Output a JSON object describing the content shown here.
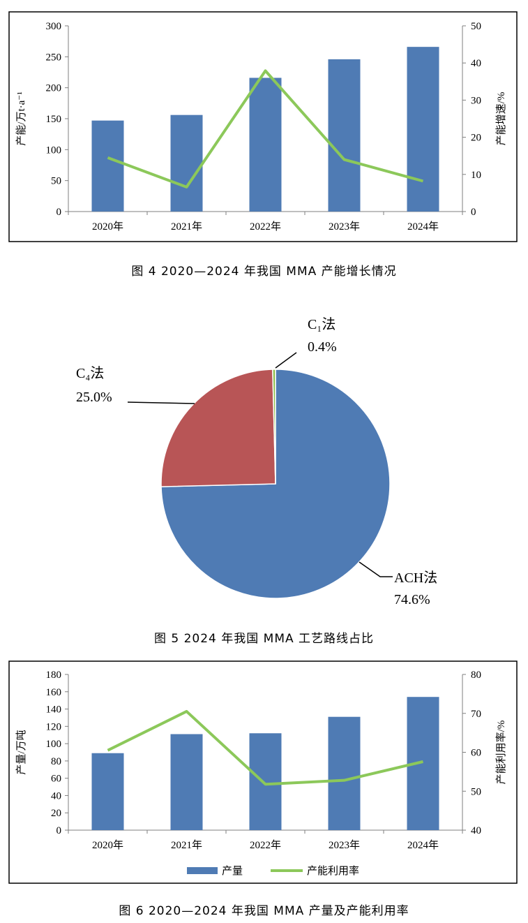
{
  "charts": [
    {
      "type": "bar",
      "caption": "图 4  2020—2024 年我国 MMA 产能增长情况",
      "categories": [
        "2020年",
        "2021年",
        "2022年",
        "2023年",
        "2024年"
      ],
      "series": [
        {
          "values": [
            147,
            156,
            216,
            246,
            266
          ],
          "axis": "left",
          "kind": "bar"
        },
        {
          "values": [
            14.5,
            6.6,
            37.9,
            14.0,
            8.2
          ],
          "axis": "right",
          "kind": "line"
        }
      ],
      "ylabel_left": "产能/万t·a⁻¹",
      "ylabel_right": "产能增速/%",
      "left_ticks": [
        "0",
        "50",
        "100",
        "150",
        "200",
        "250",
        "300"
      ],
      "right_ticks": [
        "0",
        "10",
        "20",
        "30",
        "40",
        "50"
      ],
      "ylim_left": [
        0,
        300
      ],
      "ylim_right": [
        0,
        50
      ],
      "grid": false,
      "colors": {
        "bar": "#4f7bb4",
        "line": "#8cc85a"
      }
    },
    {
      "type": "pie",
      "caption": "图 5  2024 年我国 MMA 工艺路线占比",
      "slices": [
        {
          "label": "ACH法",
          "value": 74.6,
          "display": "74.6%",
          "color": "#4f7bb4"
        },
        {
          "label": "C₄法",
          "value": 25.0,
          "display": "25.0%",
          "color": "#b85556"
        },
        {
          "label": "C₁法",
          "value": 0.4,
          "display": "0.4%",
          "color": "#8fbe4d"
        }
      ]
    },
    {
      "type": "bar",
      "caption": "图 6  2020—2024 年我国 MMA 产量及产能利用率",
      "categories": [
        "2020年",
        "2021年",
        "2022年",
        "2023年",
        "2024年"
      ],
      "series": [
        {
          "name": "产量",
          "values": [
            89,
            111,
            112,
            131,
            154
          ],
          "axis": "left",
          "kind": "bar"
        },
        {
          "name": "产能利用率",
          "values": [
            60.5,
            70.5,
            51.8,
            52.8,
            57.6
          ],
          "axis": "right",
          "kind": "line"
        }
      ],
      "ylabel_left": "产量/万吨",
      "ylabel_right": "产能利用率/%",
      "left_ticks": [
        "0",
        "20",
        "40",
        "60",
        "80",
        "100",
        "120",
        "140",
        "160",
        "180"
      ],
      "right_ticks": [
        "40",
        "50",
        "60",
        "70",
        "80"
      ],
      "ylim_left": [
        0,
        180
      ],
      "ylim_right": [
        40,
        80
      ],
      "grid": false,
      "legend": "bottom",
      "colors": {
        "bar": "#4f7bb4",
        "line": "#8cc85a"
      }
    }
  ]
}
